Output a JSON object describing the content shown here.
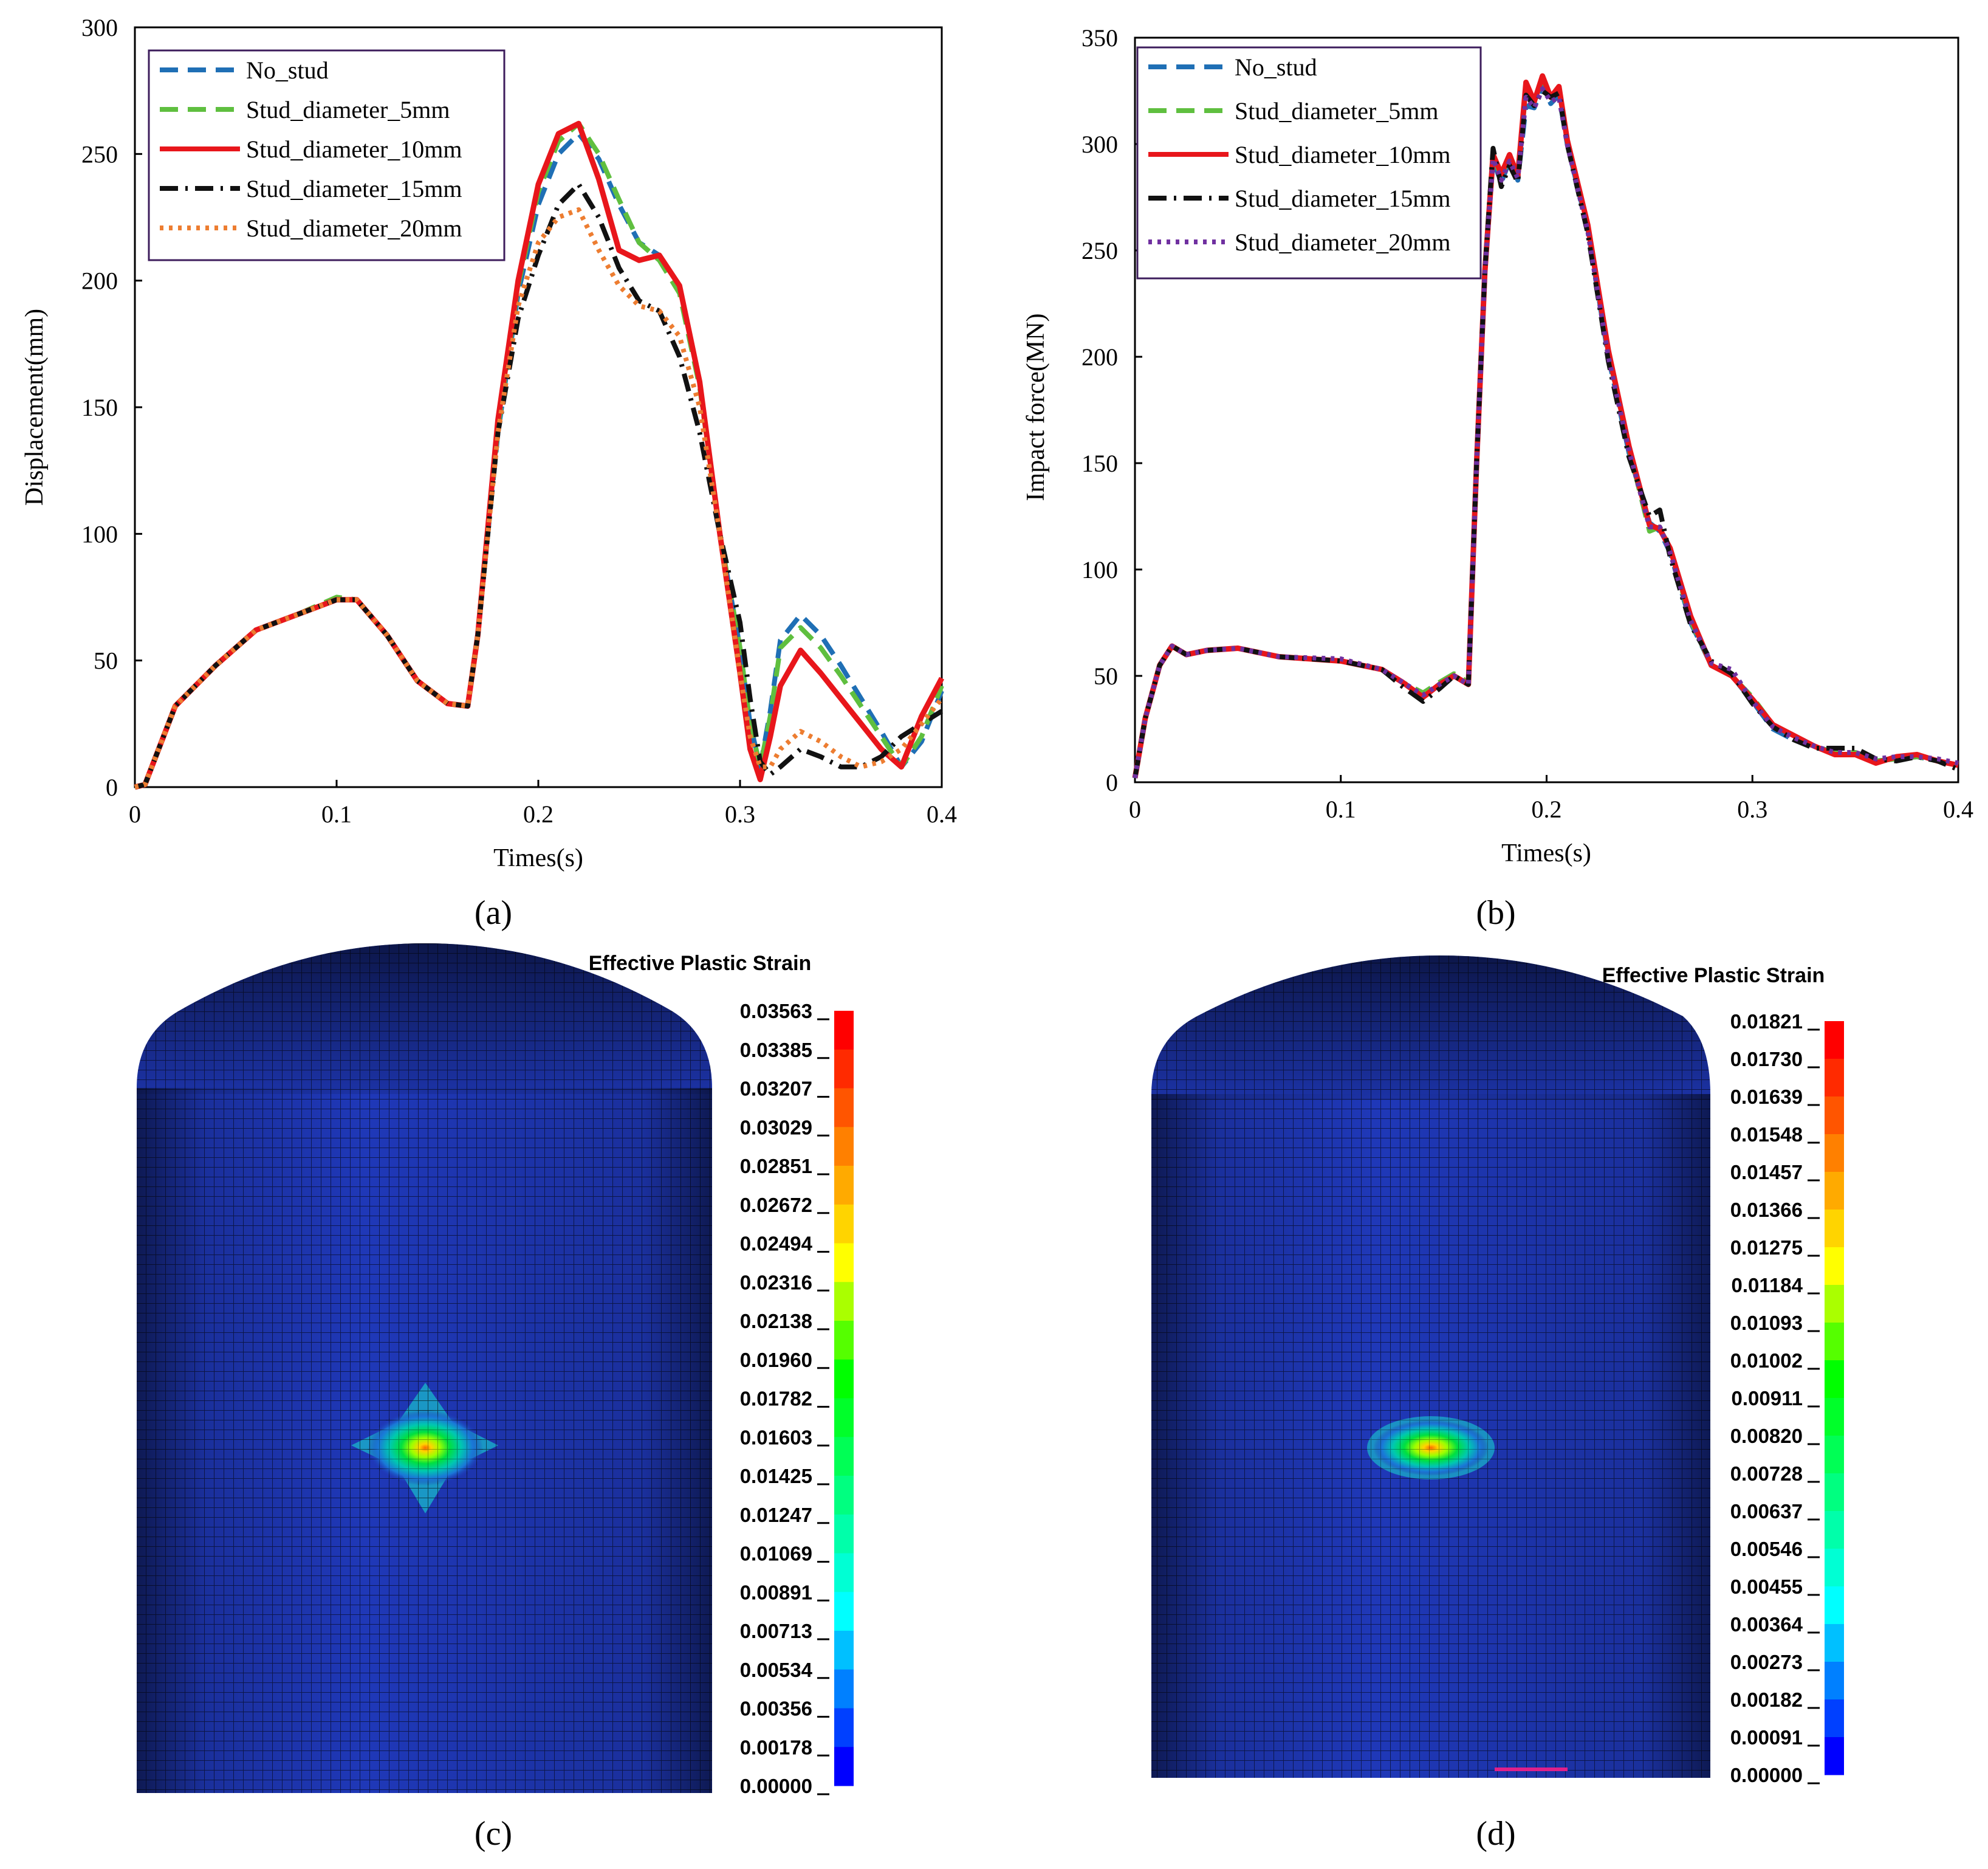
{
  "chart_data": [
    {
      "type": "line",
      "panel": "(a)",
      "xlabel": "Times(s)",
      "ylabel": "Displacement(mm)",
      "xlim": [
        0,
        0.4
      ],
      "ylim": [
        0,
        300
      ],
      "xticks": [
        0,
        0.1,
        0.2,
        0.3,
        0.4
      ],
      "xtick_labels": [
        "0",
        "0.1",
        "0.2",
        "0.3",
        "0.4"
      ],
      "yticks": [
        0,
        50,
        100,
        150,
        200,
        250,
        300
      ],
      "ytick_labels": [
        "0",
        "50",
        "100",
        "150",
        "200",
        "250",
        "300"
      ],
      "legend_position": "top-left",
      "series": [
        {
          "name": "No_stud",
          "color": "#1f6fb5",
          "dash": "dash",
          "x": [
            0,
            0.005,
            0.02,
            0.04,
            0.06,
            0.08,
            0.1,
            0.11,
            0.125,
            0.14,
            0.155,
            0.165,
            0.17,
            0.18,
            0.19,
            0.2,
            0.21,
            0.22,
            0.23,
            0.24,
            0.25,
            0.26,
            0.27,
            0.28,
            0.29,
            0.3,
            0.305,
            0.31,
            0.315,
            0.32,
            0.33,
            0.34,
            0.35,
            0.36,
            0.37,
            0.38,
            0.39,
            0.4
          ],
          "y": [
            0,
            1,
            32,
            48,
            62,
            68,
            74,
            74,
            60,
            42,
            33,
            32,
            60,
            140,
            195,
            230,
            250,
            258,
            248,
            230,
            215,
            210,
            198,
            160,
            100,
            55,
            25,
            8,
            30,
            58,
            68,
            60,
            48,
            35,
            22,
            8,
            18,
            38
          ]
        },
        {
          "name": "Stud_diameter_5mm",
          "color": "#5fbf3f",
          "dash": "dash",
          "x": [
            0,
            0.005,
            0.02,
            0.04,
            0.06,
            0.08,
            0.1,
            0.11,
            0.125,
            0.14,
            0.155,
            0.165,
            0.17,
            0.18,
            0.19,
            0.2,
            0.21,
            0.22,
            0.23,
            0.24,
            0.25,
            0.26,
            0.27,
            0.28,
            0.29,
            0.3,
            0.305,
            0.31,
            0.315,
            0.32,
            0.33,
            0.34,
            0.35,
            0.36,
            0.37,
            0.38,
            0.39,
            0.4
          ],
          "y": [
            0,
            1,
            32,
            48,
            62,
            68,
            75,
            74,
            60,
            42,
            33,
            32,
            60,
            142,
            198,
            235,
            255,
            262,
            250,
            232,
            215,
            208,
            195,
            158,
            100,
            55,
            25,
            8,
            28,
            55,
            63,
            55,
            44,
            32,
            20,
            8,
            20,
            40
          ]
        },
        {
          "name": "Stud_diameter_10mm",
          "color": "#e8161b",
          "dash": "solid",
          "x": [
            0,
            0.005,
            0.02,
            0.04,
            0.06,
            0.08,
            0.1,
            0.11,
            0.125,
            0.14,
            0.155,
            0.165,
            0.17,
            0.18,
            0.19,
            0.2,
            0.21,
            0.22,
            0.23,
            0.24,
            0.25,
            0.26,
            0.27,
            0.28,
            0.29,
            0.3,
            0.305,
            0.31,
            0.315,
            0.32,
            0.33,
            0.34,
            0.35,
            0.36,
            0.37,
            0.38,
            0.39,
            0.4
          ],
          "y": [
            0,
            1,
            32,
            48,
            62,
            68,
            74,
            74,
            60,
            42,
            33,
            32,
            60,
            145,
            200,
            238,
            258,
            262,
            240,
            212,
            208,
            210,
            198,
            160,
            100,
            45,
            15,
            3,
            20,
            40,
            54,
            45,
            35,
            25,
            15,
            8,
            28,
            43
          ]
        },
        {
          "name": "Stud_diameter_15mm",
          "color": "#111111",
          "dash": "dashdot",
          "x": [
            0,
            0.005,
            0.02,
            0.04,
            0.06,
            0.08,
            0.1,
            0.11,
            0.125,
            0.14,
            0.155,
            0.165,
            0.17,
            0.18,
            0.19,
            0.2,
            0.21,
            0.22,
            0.23,
            0.24,
            0.25,
            0.26,
            0.27,
            0.28,
            0.29,
            0.3,
            0.305,
            0.31,
            0.315,
            0.32,
            0.33,
            0.34,
            0.35,
            0.36,
            0.37,
            0.38,
            0.39,
            0.4
          ],
          "y": [
            0,
            1,
            32,
            48,
            62,
            68,
            74,
            74,
            60,
            42,
            33,
            32,
            60,
            140,
            185,
            210,
            230,
            238,
            225,
            205,
            192,
            188,
            170,
            140,
            100,
            65,
            35,
            10,
            5,
            8,
            15,
            12,
            8,
            8,
            12,
            20,
            25,
            30
          ]
        },
        {
          "name": "Stud_diameter_20mm",
          "color": "#ed7d31",
          "dash": "dot",
          "x": [
            0,
            0.005,
            0.02,
            0.04,
            0.06,
            0.08,
            0.1,
            0.11,
            0.125,
            0.14,
            0.155,
            0.165,
            0.17,
            0.18,
            0.19,
            0.2,
            0.21,
            0.22,
            0.23,
            0.24,
            0.25,
            0.26,
            0.27,
            0.28,
            0.29,
            0.3,
            0.305,
            0.31,
            0.315,
            0.32,
            0.33,
            0.34,
            0.35,
            0.36,
            0.37,
            0.38,
            0.39,
            0.4
          ],
          "y": [
            0,
            1,
            32,
            48,
            62,
            68,
            74,
            74,
            60,
            42,
            33,
            32,
            60,
            140,
            190,
            215,
            225,
            228,
            212,
            198,
            190,
            188,
            178,
            150,
            100,
            45,
            20,
            8,
            8,
            15,
            22,
            18,
            12,
            8,
            10,
            15,
            25,
            35
          ]
        }
      ]
    },
    {
      "type": "line",
      "panel": "(b)",
      "xlabel": "Times(s)",
      "ylabel": "Impact force(MN)",
      "xlim": [
        0,
        0.4
      ],
      "ylim": [
        0,
        350
      ],
      "xticks": [
        0,
        0.1,
        0.2,
        0.3,
        0.4
      ],
      "xtick_labels": [
        "0",
        "0.1",
        "0.2",
        "0.3",
        "0.4"
      ],
      "yticks": [
        0,
        50,
        100,
        150,
        200,
        250,
        300,
        350
      ],
      "ytick_labels": [
        "0",
        "50",
        "100",
        "150",
        "200",
        "250",
        "300",
        "350"
      ],
      "legend_position": "top-left",
      "series": [
        {
          "name": "No_stud",
          "color": "#1f6fb5",
          "dash": "dash",
          "x": [
            0,
            0.005,
            0.012,
            0.018,
            0.025,
            0.035,
            0.05,
            0.07,
            0.1,
            0.12,
            0.13,
            0.14,
            0.148,
            0.155,
            0.162,
            0.166,
            0.17,
            0.174,
            0.178,
            0.182,
            0.186,
            0.19,
            0.194,
            0.198,
            0.202,
            0.206,
            0.21,
            0.22,
            0.23,
            0.24,
            0.25,
            0.255,
            0.26,
            0.27,
            0.28,
            0.29,
            0.3,
            0.31,
            0.32,
            0.33,
            0.34,
            0.35,
            0.36,
            0.37,
            0.38,
            0.39,
            0.4
          ],
          "y": [
            2,
            30,
            55,
            64,
            60,
            62,
            63,
            59,
            57,
            53,
            47,
            40,
            45,
            50,
            46,
            150,
            240,
            292,
            282,
            292,
            283,
            318,
            317,
            328,
            319,
            323,
            300,
            260,
            200,
            155,
            122,
            118,
            108,
            75,
            55,
            50,
            38,
            25,
            20,
            17,
            14,
            14,
            10,
            11,
            12,
            10,
            8
          ]
        },
        {
          "name": "Stud_diameter_5mm",
          "color": "#5fbf3f",
          "dash": "dash",
          "x": [
            0,
            0.005,
            0.012,
            0.018,
            0.025,
            0.035,
            0.05,
            0.07,
            0.1,
            0.12,
            0.13,
            0.14,
            0.148,
            0.155,
            0.162,
            0.166,
            0.17,
            0.174,
            0.178,
            0.182,
            0.186,
            0.19,
            0.194,
            0.198,
            0.202,
            0.206,
            0.21,
            0.22,
            0.23,
            0.24,
            0.25,
            0.255,
            0.26,
            0.27,
            0.28,
            0.29,
            0.3,
            0.31,
            0.32,
            0.33,
            0.34,
            0.35,
            0.36,
            0.37,
            0.38,
            0.39,
            0.4
          ],
          "y": [
            2,
            30,
            55,
            64,
            60,
            62,
            63,
            59,
            57,
            53,
            47,
            42,
            47,
            51,
            47,
            150,
            240,
            294,
            285,
            294,
            285,
            326,
            320,
            331,
            322,
            326,
            302,
            262,
            202,
            157,
            118,
            120,
            110,
            76,
            55,
            50,
            40,
            27,
            22,
            17,
            14,
            14,
            10,
            11,
            12,
            10,
            8
          ]
        },
        {
          "name": "Stud_diameter_10mm",
          "color": "#e8161b",
          "dash": "solid",
          "x": [
            0,
            0.005,
            0.012,
            0.018,
            0.025,
            0.035,
            0.05,
            0.07,
            0.1,
            0.12,
            0.13,
            0.14,
            0.148,
            0.155,
            0.162,
            0.166,
            0.17,
            0.174,
            0.178,
            0.182,
            0.186,
            0.19,
            0.194,
            0.198,
            0.202,
            0.206,
            0.21,
            0.22,
            0.23,
            0.24,
            0.25,
            0.255,
            0.26,
            0.27,
            0.28,
            0.29,
            0.3,
            0.31,
            0.32,
            0.33,
            0.34,
            0.35,
            0.36,
            0.37,
            0.38,
            0.39,
            0.4
          ],
          "y": [
            2,
            30,
            55,
            64,
            60,
            62,
            63,
            59,
            57,
            53,
            47,
            40,
            46,
            50,
            46,
            150,
            240,
            295,
            286,
            295,
            285,
            329,
            320,
            332,
            322,
            327,
            302,
            262,
            203,
            158,
            121,
            119,
            110,
            78,
            55,
            50,
            39,
            27,
            22,
            17,
            13,
            13,
            9,
            12,
            13,
            10,
            8
          ]
        },
        {
          "name": "Stud_diameter_15mm",
          "color": "#111111",
          "dash": "dashdot",
          "x": [
            0,
            0.005,
            0.012,
            0.018,
            0.025,
            0.035,
            0.05,
            0.07,
            0.1,
            0.12,
            0.13,
            0.14,
            0.148,
            0.155,
            0.162,
            0.166,
            0.17,
            0.174,
            0.178,
            0.182,
            0.186,
            0.19,
            0.194,
            0.198,
            0.202,
            0.206,
            0.21,
            0.22,
            0.23,
            0.24,
            0.25,
            0.255,
            0.26,
            0.27,
            0.28,
            0.29,
            0.3,
            0.31,
            0.32,
            0.33,
            0.34,
            0.35,
            0.36,
            0.37,
            0.38,
            0.39,
            0.4
          ],
          "y": [
            2,
            30,
            55,
            64,
            60,
            62,
            63,
            59,
            57,
            53,
            45,
            38,
            44,
            50,
            46,
            150,
            240,
            298,
            280,
            290,
            282,
            323,
            318,
            325,
            322,
            324,
            300,
            258,
            198,
            153,
            125,
            128,
            106,
            74,
            57,
            51,
            37,
            26,
            20,
            16,
            16,
            16,
            11,
            10,
            12,
            10,
            6
          ]
        },
        {
          "name": "Stud_diameter_20mm",
          "color": "#7030a0",
          "dash": "dot",
          "x": [
            0,
            0.005,
            0.012,
            0.018,
            0.025,
            0.035,
            0.05,
            0.07,
            0.1,
            0.12,
            0.13,
            0.14,
            0.148,
            0.155,
            0.162,
            0.166,
            0.17,
            0.174,
            0.178,
            0.182,
            0.186,
            0.19,
            0.194,
            0.198,
            0.202,
            0.206,
            0.21,
            0.22,
            0.23,
            0.24,
            0.25,
            0.255,
            0.26,
            0.27,
            0.28,
            0.29,
            0.3,
            0.31,
            0.32,
            0.33,
            0.34,
            0.35,
            0.36,
            0.37,
            0.38,
            0.39,
            0.4
          ],
          "y": [
            2,
            30,
            55,
            64,
            60,
            62,
            63,
            59,
            58,
            53,
            47,
            41,
            46,
            50,
            46,
            150,
            240,
            293,
            283,
            292,
            284,
            322,
            317,
            326,
            320,
            322,
            300,
            259,
            200,
            156,
            120,
            120,
            108,
            76,
            56,
            53,
            38,
            26,
            21,
            17,
            14,
            14,
            11,
            12,
            12,
            11,
            9
          ]
        }
      ]
    },
    {
      "type": "heatmap",
      "panel": "(c)",
      "title": "Effective Plastic Strain",
      "colorbar_labels": [
        "0.03563",
        "0.03385",
        "0.03207",
        "0.03029",
        "0.02851",
        "0.02672",
        "0.02494",
        "0.02316",
        "0.02138",
        "0.01960",
        "0.01782",
        "0.01603",
        "0.01425",
        "0.01247",
        "0.01069",
        "0.00891",
        "0.00713",
        "0.00534",
        "0.00356",
        "0.00178",
        "0.00000"
      ],
      "min": 0,
      "max": 0.03563,
      "hotspot_shape": "diamond"
    },
    {
      "type": "heatmap",
      "panel": "(d)",
      "title": "Effective Plastic Strain",
      "colorbar_labels": [
        "0.01821",
        "0.01730",
        "0.01639",
        "0.01548",
        "0.01457",
        "0.01366",
        "0.01275",
        "0.01184",
        "0.01093",
        "0.01002",
        "0.00911",
        "0.00820",
        "0.00728",
        "0.00637",
        "0.00546",
        "0.00455",
        "0.00364",
        "0.00273",
        "0.00182",
        "0.00091",
        "0.00000"
      ],
      "min": 0,
      "max": 0.01821,
      "hotspot_shape": "ellipse"
    }
  ],
  "colorbar_colors": [
    "#ff0000",
    "#ff2a00",
    "#ff5500",
    "#ff8000",
    "#ffaa00",
    "#ffd400",
    "#ffff00",
    "#aaff00",
    "#55ff00",
    "#00ff00",
    "#00ff2a",
    "#00ff55",
    "#00ff80",
    "#00ffaa",
    "#00ffd4",
    "#00ffff",
    "#00c0ff",
    "#0080ff",
    "#0040ff",
    "#0000ff"
  ],
  "panel_labels": {
    "a": "(a)",
    "b": "(b)",
    "c": "(c)",
    "d": "(d)"
  }
}
